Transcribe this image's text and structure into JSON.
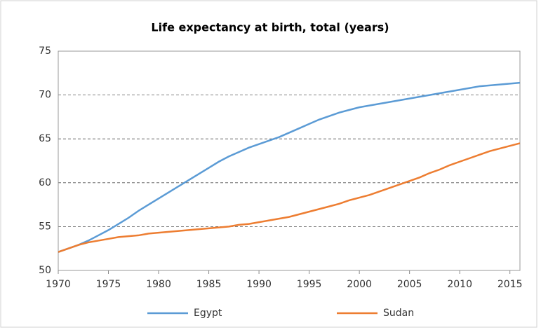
{
  "chart_data": {
    "type": "line",
    "title": "Life expectancy at birth, total (years)",
    "x": [
      1970,
      1971,
      1972,
      1973,
      1974,
      1975,
      1976,
      1977,
      1978,
      1979,
      1980,
      1981,
      1982,
      1983,
      1984,
      1985,
      1986,
      1987,
      1988,
      1989,
      1990,
      1991,
      1992,
      1993,
      1994,
      1995,
      1996,
      1997,
      1998,
      1999,
      2000,
      2001,
      2002,
      2003,
      2004,
      2005,
      2006,
      2007,
      2008,
      2009,
      2010,
      2011,
      2012,
      2013,
      2014,
      2015,
      2016
    ],
    "series": [
      {
        "name": "Egypt",
        "color": "#5b9bd5",
        "values": [
          52.1,
          52.5,
          52.9,
          53.4,
          54.0,
          54.6,
          55.3,
          56.0,
          56.8,
          57.5,
          58.2,
          58.9,
          59.6,
          60.3,
          61.0,
          61.7,
          62.4,
          63.0,
          63.5,
          64.0,
          64.4,
          64.8,
          65.2,
          65.7,
          66.2,
          66.7,
          67.2,
          67.6,
          68.0,
          68.3,
          68.6,
          68.8,
          69.0,
          69.2,
          69.4,
          69.6,
          69.8,
          70.0,
          70.2,
          70.4,
          70.6,
          70.8,
          71.0,
          71.1,
          71.2,
          71.3,
          71.4
        ]
      },
      {
        "name": "Sudan",
        "color": "#ed7d31",
        "values": [
          52.1,
          52.5,
          52.9,
          53.2,
          53.4,
          53.6,
          53.8,
          53.9,
          54.0,
          54.2,
          54.3,
          54.4,
          54.5,
          54.6,
          54.7,
          54.8,
          54.9,
          55.0,
          55.2,
          55.3,
          55.5,
          55.7,
          55.9,
          56.1,
          56.4,
          56.7,
          57.0,
          57.3,
          57.6,
          58.0,
          58.3,
          58.6,
          59.0,
          59.4,
          59.8,
          60.2,
          60.6,
          61.1,
          61.5,
          62.0,
          62.4,
          62.8,
          63.2,
          63.6,
          63.9,
          64.2,
          64.5
        ]
      }
    ],
    "xlim": [
      1970,
      2016
    ],
    "xticks": [
      1970,
      1975,
      1980,
      1985,
      1990,
      1995,
      2000,
      2005,
      2010,
      2015
    ],
    "ylim": [
      50,
      75
    ],
    "yticks": [
      50,
      55,
      60,
      65,
      70,
      75
    ],
    "grid": true,
    "legend": "bottom"
  }
}
